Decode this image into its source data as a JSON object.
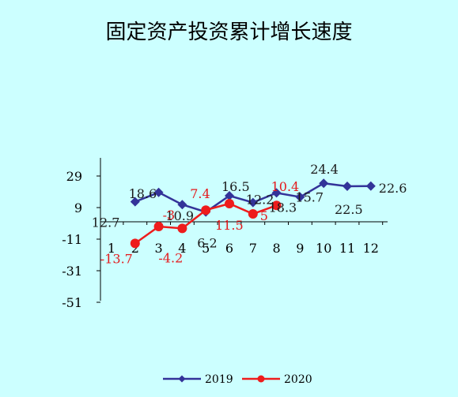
{
  "chart_data": {
    "type": "line",
    "title": "固定资产投资累计增长速度",
    "xlabel": "",
    "ylabel": "",
    "categories": [
      "1",
      "2",
      "3",
      "4",
      "5",
      "6",
      "7",
      "8",
      "9",
      "10",
      "11",
      "12"
    ],
    "y_ticks": [
      "29",
      "9",
      "-11",
      "-31",
      "-51"
    ],
    "ylim": [
      -51,
      29
    ],
    "grid": false,
    "legend_position": "bottom",
    "series": [
      {
        "name": "2019",
        "color": "#333399",
        "marker": "diamond",
        "values": [
          null,
          12.7,
          18.6,
          10.9,
          6.2,
          16.5,
          12.2,
          18.3,
          15.7,
          24.4,
          22.5,
          22.6
        ],
        "labels": [
          null,
          "12.7",
          "18.6",
          "10.9",
          "6.2",
          "16.5",
          "12.2",
          "18.3",
          "15.7",
          "24.4",
          "22.5",
          "22.6"
        ]
      },
      {
        "name": "2020",
        "color": "#ee1c1c",
        "marker": "circle",
        "values": [
          null,
          -13.7,
          -3.0,
          -4.2,
          7.4,
          11.5,
          5.0,
          10.4,
          null,
          null,
          null,
          null
        ],
        "labels": [
          null,
          "-13.7",
          "-3",
          "-4.2",
          "7.4",
          "11.5",
          "5",
          "10.4",
          null,
          null,
          null,
          null
        ]
      }
    ]
  }
}
